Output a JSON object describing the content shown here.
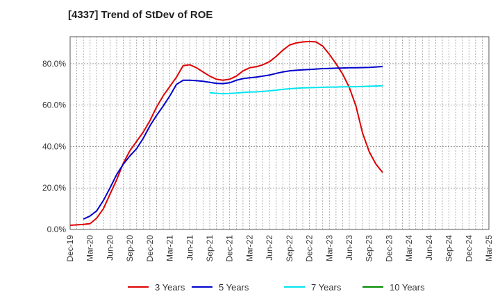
{
  "chart_data": {
    "type": "line",
    "title": "[4337]  Trend of StDev of ROE",
    "xlabel": "",
    "ylabel": "",
    "x_ticks": [
      "Dec-19",
      "Mar-20",
      "Jun-20",
      "Sep-20",
      "Dec-20",
      "Mar-21",
      "Jun-21",
      "Sep-21",
      "Dec-21",
      "Mar-22",
      "Jun-22",
      "Sep-22",
      "Dec-22",
      "Mar-23",
      "Jun-23",
      "Sep-23",
      "Dec-23",
      "Mar-24",
      "Jun-24",
      "Sep-24",
      "Dec-24",
      "Mar-25"
    ],
    "y_ticks": [
      "0.0%",
      "20.0%",
      "40.0%",
      "60.0%",
      "80.0%"
    ],
    "y_tick_values": [
      0,
      20,
      40,
      60,
      80
    ],
    "ylim": [
      0,
      93
    ],
    "grid": true,
    "legend_position": "bottom",
    "series": [
      {
        "name": "3 Years",
        "color": "#dd0000",
        "points": [
          [
            0,
            2.0
          ],
          [
            1,
            2.2
          ],
          [
            2,
            2.4
          ],
          [
            3,
            2.8
          ],
          [
            4,
            5.5
          ],
          [
            5,
            10
          ],
          [
            6,
            17
          ],
          [
            7,
            24
          ],
          [
            8,
            32
          ],
          [
            9,
            38
          ],
          [
            10,
            42.5
          ],
          [
            11,
            47
          ],
          [
            12,
            52.5
          ],
          [
            13,
            59
          ],
          [
            14,
            64.5
          ],
          [
            15,
            69
          ],
          [
            16,
            73.5
          ],
          [
            17,
            79
          ],
          [
            18,
            79.5
          ],
          [
            19,
            78
          ],
          [
            20,
            76
          ],
          [
            21,
            74
          ],
          [
            22,
            72.5
          ],
          [
            23,
            72
          ],
          [
            24,
            72.5
          ],
          [
            25,
            74
          ],
          [
            26,
            76.5
          ],
          [
            27,
            78
          ],
          [
            28,
            78.5
          ],
          [
            29,
            79.5
          ],
          [
            30,
            81
          ],
          [
            31,
            83.5
          ],
          [
            32,
            86.5
          ],
          [
            33,
            89
          ],
          [
            34,
            90
          ],
          [
            35,
            90.5
          ],
          [
            36,
            90.7
          ],
          [
            37,
            90.5
          ],
          [
            38,
            88.5
          ],
          [
            39,
            84.5
          ],
          [
            40,
            80
          ],
          [
            41,
            75
          ],
          [
            42,
            68.5
          ],
          [
            43,
            59.5
          ],
          [
            44,
            46.5
          ],
          [
            45,
            37.5
          ],
          [
            46,
            31.5
          ],
          [
            47,
            27.5
          ]
        ]
      },
      {
        "name": "5 Years",
        "color": "#0000cc",
        "points": [
          [
            2,
            5
          ],
          [
            3,
            6.5
          ],
          [
            4,
            9
          ],
          [
            5,
            14
          ],
          [
            6,
            20
          ],
          [
            7,
            26.5
          ],
          [
            8,
            31.5
          ],
          [
            9,
            35.5
          ],
          [
            10,
            39
          ],
          [
            11,
            44
          ],
          [
            12,
            50
          ],
          [
            13,
            55
          ],
          [
            14,
            59.5
          ],
          [
            15,
            64.5
          ],
          [
            16,
            70
          ],
          [
            17,
            72
          ],
          [
            18,
            72
          ],
          [
            19,
            71.8
          ],
          [
            20,
            71.5
          ],
          [
            21,
            71
          ],
          [
            22,
            70.5
          ],
          [
            23,
            70.4
          ],
          [
            24,
            70.8
          ],
          [
            25,
            72
          ],
          [
            26,
            72.8
          ],
          [
            27,
            73.2
          ],
          [
            28,
            73.5
          ],
          [
            29,
            74
          ],
          [
            30,
            74.5
          ],
          [
            31,
            75.3
          ],
          [
            32,
            76
          ],
          [
            33,
            76.5
          ],
          [
            34,
            76.8
          ],
          [
            35,
            77
          ],
          [
            36,
            77.2
          ],
          [
            37,
            77.4
          ],
          [
            38,
            77.6
          ],
          [
            39,
            77.7
          ],
          [
            40,
            77.8
          ],
          [
            41,
            77.9
          ],
          [
            42,
            78
          ],
          [
            43,
            78
          ],
          [
            44,
            78.1
          ],
          [
            45,
            78.2
          ],
          [
            46,
            78.4
          ],
          [
            47,
            78.6
          ]
        ]
      },
      {
        "name": "7 Years",
        "color": "#00e5ee",
        "points": [
          [
            21,
            66
          ],
          [
            22,
            65.7
          ],
          [
            23,
            65.5
          ],
          [
            24,
            65.6
          ],
          [
            25,
            65.8
          ],
          [
            26,
            66.1
          ],
          [
            27,
            66.3
          ],
          [
            28,
            66.4
          ],
          [
            29,
            66.6
          ],
          [
            30,
            66.9
          ],
          [
            31,
            67.2
          ],
          [
            32,
            67.6
          ],
          [
            33,
            67.9
          ],
          [
            34,
            68.1
          ],
          [
            35,
            68.3
          ],
          [
            36,
            68.4
          ],
          [
            37,
            68.5
          ],
          [
            38,
            68.6
          ],
          [
            39,
            68.7
          ],
          [
            40,
            68.7
          ],
          [
            41,
            68.8
          ],
          [
            42,
            68.8
          ],
          [
            43,
            68.9
          ],
          [
            44,
            69
          ],
          [
            45,
            69.1
          ],
          [
            46,
            69.2
          ],
          [
            47,
            69.3
          ]
        ]
      },
      {
        "name": "10 Years",
        "color": "#008800",
        "points": []
      }
    ]
  }
}
